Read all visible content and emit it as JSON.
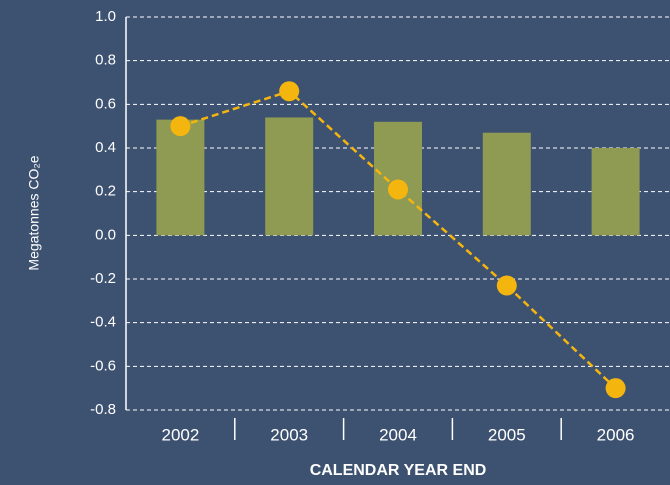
{
  "chart_data": {
    "type": "bar",
    "categories": [
      "2002",
      "2003",
      "2004",
      "2005",
      "2006"
    ],
    "series": [
      {
        "type": "bar",
        "color": "#8f9a52",
        "values": [
          0.53,
          0.54,
          0.52,
          0.47,
          0.4
        ]
      },
      {
        "type": "line",
        "color": "#f5b50f",
        "values": [
          0.5,
          0.66,
          0.21,
          -0.23,
          -0.7
        ]
      }
    ],
    "ylabel": "Megatonnes CO₂e",
    "xlabel": "CALENDAR YEAR END",
    "ylim": [
      -0.8,
      1.0
    ],
    "yticks": [
      {
        "value": -0.8,
        "label": "-0.8"
      },
      -0.6,
      -0.4,
      -0.2,
      {
        "value": 0,
        "label": "0.0"
      },
      0.2,
      0.4,
      0.6,
      0.8,
      {
        "value": 1,
        "label": "1.0"
      }
    ],
    "grid": true
  }
}
